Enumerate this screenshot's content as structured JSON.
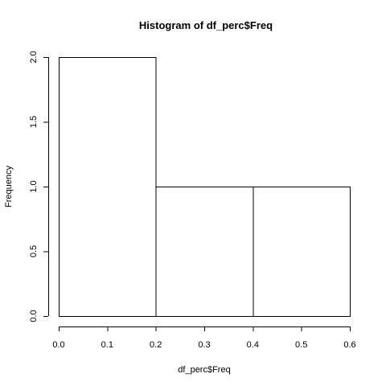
{
  "chart_data": {
    "type": "bar",
    "title": "Histogram of df_perc$Freq",
    "xlabel": "df_perc$Freq",
    "ylabel": "Frequency",
    "bins": [
      {
        "start": 0.0,
        "end": 0.2,
        "count": 2
      },
      {
        "start": 0.2,
        "end": 0.4,
        "count": 1
      },
      {
        "start": 0.4,
        "end": 0.6,
        "count": 1
      }
    ],
    "xlim": [
      0.0,
      0.6
    ],
    "ylim": [
      0.0,
      2.0
    ],
    "x_ticks": [
      "0.0",
      "0.1",
      "0.2",
      "0.3",
      "0.4",
      "0.5",
      "0.6"
    ],
    "y_ticks": [
      "0.0",
      "0.5",
      "1.0",
      "1.5",
      "2.0"
    ],
    "grid": false,
    "bar_fill": "#ffffff",
    "bar_stroke": "#000000"
  }
}
